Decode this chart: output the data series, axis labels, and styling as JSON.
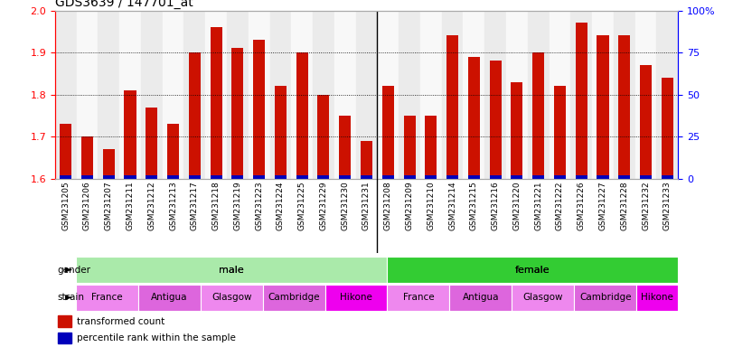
{
  "title": "GDS3639 / 147701_at",
  "samples": [
    "GSM231205",
    "GSM231206",
    "GSM231207",
    "GSM231211",
    "GSM231212",
    "GSM231213",
    "GSM231217",
    "GSM231218",
    "GSM231219",
    "GSM231223",
    "GSM231224",
    "GSM231225",
    "GSM231229",
    "GSM231230",
    "GSM231231",
    "GSM231208",
    "GSM231209",
    "GSM231210",
    "GSM231214",
    "GSM231215",
    "GSM231216",
    "GSM231220",
    "GSM231221",
    "GSM231222",
    "GSM231226",
    "GSM231227",
    "GSM231228",
    "GSM231232",
    "GSM231233"
  ],
  "red_values": [
    1.73,
    1.7,
    1.67,
    1.81,
    1.77,
    1.73,
    1.9,
    1.96,
    1.91,
    1.93,
    1.82,
    1.9,
    1.8,
    1.75,
    1.69,
    1.82,
    1.75,
    1.75,
    1.94,
    1.89,
    1.88,
    1.83,
    1.9,
    1.82,
    1.97,
    1.94,
    1.94,
    1.87,
    1.84
  ],
  "blue_heights": [
    0.008,
    0.008,
    0.008,
    0.008,
    0.008,
    0.008,
    0.008,
    0.008,
    0.008,
    0.008,
    0.008,
    0.008,
    0.008,
    0.008,
    0.008,
    0.008,
    0.008,
    0.008,
    0.008,
    0.008,
    0.008,
    0.008,
    0.008,
    0.008,
    0.008,
    0.008,
    0.008,
    0.008,
    0.008
  ],
  "ymin": 1.6,
  "ymax": 2.0,
  "yticks_left": [
    1.6,
    1.7,
    1.8,
    1.9,
    2.0
  ],
  "grid_lines": [
    1.7,
    1.8,
    1.9
  ],
  "yticks_right": [
    0,
    25,
    50,
    75,
    100
  ],
  "yticks_right_labels": [
    "0",
    "25",
    "50",
    "75",
    "100%"
  ],
  "gender_groups": [
    {
      "label": "male",
      "start": 0,
      "end": 15,
      "color": "#aaeaaa"
    },
    {
      "label": "female",
      "start": 15,
      "end": 29,
      "color": "#33cc33"
    }
  ],
  "strain_groups": [
    {
      "label": "France",
      "start": 0,
      "end": 3,
      "color": "#ee88ee"
    },
    {
      "label": "Antigua",
      "start": 3,
      "end": 6,
      "color": "#dd66dd"
    },
    {
      "label": "Glasgow",
      "start": 6,
      "end": 9,
      "color": "#ee88ee"
    },
    {
      "label": "Cambridge",
      "start": 9,
      "end": 12,
      "color": "#dd66dd"
    },
    {
      "label": "Hikone",
      "start": 12,
      "end": 15,
      "color": "#ee00ee"
    },
    {
      "label": "France",
      "start": 15,
      "end": 18,
      "color": "#ee88ee"
    },
    {
      "label": "Antigua",
      "start": 18,
      "end": 21,
      "color": "#dd66dd"
    },
    {
      "label": "Glasgow",
      "start": 21,
      "end": 24,
      "color": "#ee88ee"
    },
    {
      "label": "Cambridge",
      "start": 24,
      "end": 27,
      "color": "#dd66dd"
    },
    {
      "label": "Hikone",
      "start": 27,
      "end": 29,
      "color": "#ee00ee"
    }
  ],
  "bar_color": "#cc1100",
  "blue_color": "#0000bb",
  "bg_color": "#ffffff",
  "tick_bg_color": "#d0d0d0",
  "title_fontsize": 10,
  "bar_width": 0.55
}
